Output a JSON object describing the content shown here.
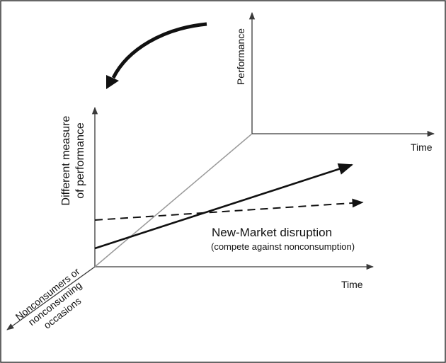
{
  "labels": {
    "performance": "Performance",
    "time_upper": "Time",
    "different_measure_line1": "Different measure",
    "different_measure_line2": "of performance",
    "time_lower": "Time",
    "nonconsumers_line1": "Nonconsumers or",
    "nonconsumers_line2": "nonconsuming",
    "nonconsumers_line3": "occasions",
    "disruption_title": "New-Market disruption",
    "disruption_subtitle": "(compete against nonconsumption)"
  },
  "colors": {
    "axis": "#3a3a3a",
    "diagonal_axis": "#9a9a9a",
    "trajectory": "#111111",
    "frame": "#333333"
  },
  "icons": {
    "rotation_arrow": "curved-arrow-icon"
  }
}
